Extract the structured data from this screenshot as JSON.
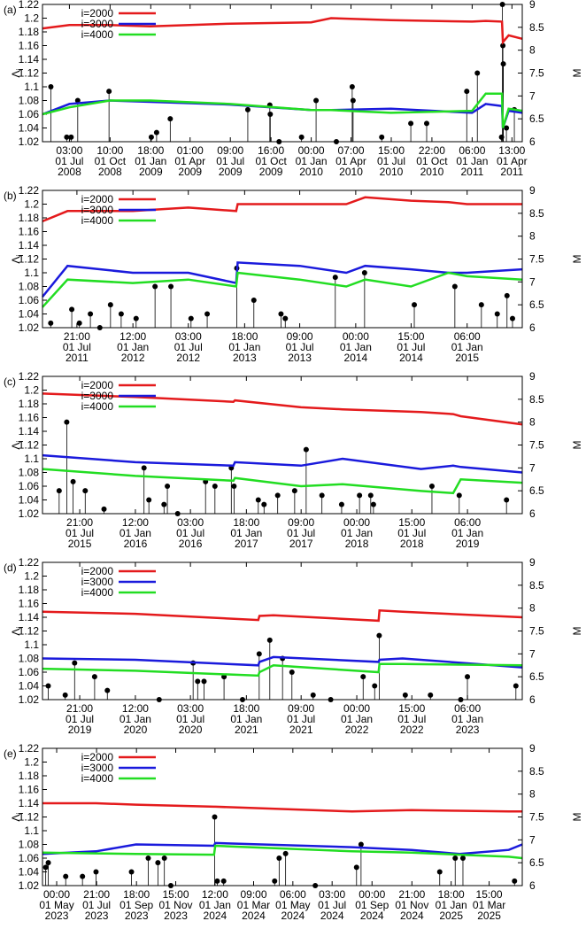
{
  "chart_data": [
    {
      "type": "line",
      "panel": "(a)",
      "ylabel": "Λi",
      "y2label": "M",
      "legend": "top left",
      "xlim": [
        "2008-05-01",
        "2011-04-25"
      ],
      "xticks": [
        {
          "value": "2008-07-01T03:00",
          "label": "03:00\n01 Jul\n2008"
        },
        {
          "value": "2008-10-01T10:00",
          "label": "10:00\n01 Oct\n2008"
        },
        {
          "value": "2009-01-01T18:00",
          "label": "18:00\n01 Jan\n2009"
        },
        {
          "value": "2009-04-01T01:00",
          "label": "01:00\n01 Apr\n2009"
        },
        {
          "value": "2009-07-01T09:00",
          "label": "09:00\n01 Jul\n2009"
        },
        {
          "value": "2009-10-01T16:00",
          "label": "16:00\n01 Oct\n2009"
        },
        {
          "value": "2010-01-01T00:00",
          "label": "00:00\n01 Jan\n2010"
        },
        {
          "value": "2010-04-01T07:00",
          "label": "07:00\n01 Apr\n2010"
        },
        {
          "value": "2010-07-01T15:00",
          "label": "15:00\n01 Jul\n2010"
        },
        {
          "value": "2010-10-01T22:00",
          "label": "22:00\n01 Oct\n2010"
        },
        {
          "value": "2011-01-01T06:00",
          "label": "06:00\n01 Jan\n2011"
        },
        {
          "value": "2011-04-01T13:00",
          "label": "13:00\n01 Apr\n2011"
        }
      ],
      "ylim": [
        1.02,
        1.22
      ],
      "yticks": [
        1.02,
        1.04,
        1.06,
        1.08,
        1.1,
        1.12,
        1.14,
        1.16,
        1.18,
        1.2,
        1.22
      ],
      "y2lim": [
        6,
        9
      ],
      "y2ticks": [
        6,
        6.5,
        7,
        7.5,
        8,
        8.5,
        9
      ],
      "x": [
        "2008-05-01",
        "2008-07-01",
        "2008-10-01",
        "2009-01-01",
        "2009-07-01",
        "2010-01-01",
        "2010-02-15",
        "2010-07-01",
        "2011-01-01",
        "2011-02-01",
        "2011-03-10",
        "2011-03-12",
        "2011-03-25",
        "2011-04-25"
      ],
      "series": [
        {
          "name": "i=2000",
          "color": "#e41a1c",
          "values": [
            1.185,
            1.19,
            1.19,
            1.188,
            1.192,
            1.194,
            1.2,
            1.197,
            1.195,
            1.196,
            1.195,
            1.165,
            1.175,
            1.17
          ]
        },
        {
          "name": "i=3000",
          "color": "#1a1adc",
          "values": [
            1.06,
            1.075,
            1.08,
            1.078,
            1.074,
            1.066,
            1.066,
            1.068,
            1.062,
            1.075,
            1.072,
            1.04,
            1.065,
            1.062
          ]
        },
        {
          "name": "i=4000",
          "color": "#22dd22",
          "values": [
            1.06,
            1.07,
            1.08,
            1.08,
            1.075,
            1.066,
            1.066,
            1.062,
            1.065,
            1.09,
            1.09,
            1.04,
            1.068,
            1.065
          ]
        }
      ],
      "stems": {
        "axis": "y2",
        "color": "#000000",
        "x": [
          "2008-05-20",
          "2008-06-25",
          "2008-07-05",
          "2008-07-20",
          "2008-09-29",
          "2009-01-03",
          "2009-01-15",
          "2009-02-15",
          "2009-08-10",
          "2009-09-29",
          "2009-09-30",
          "2009-10-20",
          "2009-12-10",
          "2010-01-12",
          "2010-02-27",
          "2010-04-04",
          "2010-04-06",
          "2010-06-10",
          "2010-08-15",
          "2010-09-20",
          "2010-12-20",
          "2011-01-13",
          "2011-03-09",
          "2011-03-11",
          "2011-03-12",
          "2011-03-13",
          "2011-03-20",
          "2011-04-07"
        ],
        "values": [
          7.2,
          6.1,
          6.1,
          6.9,
          7.1,
          6.1,
          6.2,
          6.5,
          6.7,
          6.8,
          6.6,
          6.0,
          6.1,
          6.9,
          6.0,
          7.2,
          6.9,
          6.1,
          6.4,
          6.4,
          7.1,
          7.5,
          6.1,
          9.0,
          8.1,
          7.7,
          6.3,
          6.7
        ]
      }
    },
    {
      "type": "line",
      "panel": "(b)",
      "ylabel": "Λi",
      "y2label": "M",
      "legend": "top left",
      "xlim": [
        "2011-03-11",
        "2015-07-01"
      ],
      "xticks": [
        {
          "value": "2011-07-01T21:00",
          "label": "21:00\n01 Jul\n2011"
        },
        {
          "value": "2012-01-01T12:00",
          "label": "12:00\n01 Jan\n2012"
        },
        {
          "value": "2012-07-01T03:00",
          "label": "03:00\n01 Jul\n2012"
        },
        {
          "value": "2013-01-01T18:00",
          "label": "18:00\n01 Jan\n2013"
        },
        {
          "value": "2013-07-01T09:00",
          "label": "09:00\n01 Jul\n2013"
        },
        {
          "value": "2014-01-01T00:00",
          "label": "00:00\n01 Jan\n2014"
        },
        {
          "value": "2014-07-01T15:00",
          "label": "15:00\n01 Jul\n2014"
        },
        {
          "value": "2015-01-01T06:00",
          "label": "06:00\n01 Jan\n2015"
        }
      ],
      "ylim": [
        1.02,
        1.22
      ],
      "yticks": [
        1.02,
        1.04,
        1.06,
        1.08,
        1.1,
        1.12,
        1.14,
        1.16,
        1.18,
        1.2,
        1.22
      ],
      "y2lim": [
        6,
        9
      ],
      "y2ticks": [
        6,
        6.5,
        7,
        7.5,
        8,
        8.5,
        9
      ],
      "x": [
        "2011-03-11",
        "2011-06-01",
        "2012-01-01",
        "2012-07-01",
        "2012-12-05",
        "2012-12-10",
        "2013-07-01",
        "2013-12-01",
        "2014-02-01",
        "2014-07-01",
        "2014-11-01",
        "2015-01-01",
        "2015-07-01"
      ],
      "series": [
        {
          "name": "i=2000",
          "color": "#e41a1c",
          "values": [
            1.175,
            1.19,
            1.19,
            1.195,
            1.19,
            1.2,
            1.2,
            1.2,
            1.21,
            1.205,
            1.203,
            1.2,
            1.2
          ]
        },
        {
          "name": "i=3000",
          "color": "#1a1adc",
          "values": [
            1.065,
            1.11,
            1.1,
            1.1,
            1.085,
            1.115,
            1.11,
            1.1,
            1.11,
            1.105,
            1.1,
            1.1,
            1.105
          ]
        },
        {
          "name": "i=4000",
          "color": "#22dd22",
          "values": [
            1.05,
            1.09,
            1.085,
            1.09,
            1.08,
            1.1,
            1.09,
            1.08,
            1.09,
            1.08,
            1.1,
            1.095,
            1.09
          ]
        }
      ],
      "stems": {
        "axis": "y2",
        "color": "#000000",
        "x": [
          "2011-04-07",
          "2011-06-15",
          "2011-07-10",
          "2011-08-15",
          "2011-09-15",
          "2011-10-20",
          "2011-11-24",
          "2012-01-12",
          "2012-03-14",
          "2012-05-05",
          "2012-07-10",
          "2012-09-01",
          "2012-12-07",
          "2013-02-01",
          "2013-05-01",
          "2013-05-15",
          "2013-10-26",
          "2014-01-30",
          "2014-07-12",
          "2014-11-22",
          "2015-02-17",
          "2015-04-10",
          "2015-05-12",
          "2015-05-30"
        ],
        "values": [
          6.1,
          6.4,
          6.1,
          6.3,
          6.0,
          6.5,
          6.3,
          6.2,
          6.9,
          6.9,
          6.2,
          6.3,
          7.3,
          6.6,
          6.3,
          6.2,
          7.1,
          7.2,
          6.5,
          6.9,
          6.5,
          6.3,
          6.7,
          6.2
        ]
      }
    },
    {
      "type": "line",
      "panel": "(c)",
      "ylabel": "Λi",
      "y2label": "M",
      "legend": "top left",
      "xlim": [
        "2015-03-01",
        "2019-07-01"
      ],
      "xticks": [
        {
          "value": "2015-07-01T21:00",
          "label": "21:00\n01 Jul\n2015"
        },
        {
          "value": "2016-01-01T12:00",
          "label": "12:00\n01 Jan\n2016"
        },
        {
          "value": "2016-07-01T03:00",
          "label": "03:00\n01 Jul\n2016"
        },
        {
          "value": "2017-01-01T18:00",
          "label": "18:00\n01 Jan\n2017"
        },
        {
          "value": "2017-07-01T09:00",
          "label": "09:00\n01 Jul\n2017"
        },
        {
          "value": "2018-01-01T00:00",
          "label": "00:00\n01 Jan\n2018"
        },
        {
          "value": "2018-07-01T15:00",
          "label": "15:00\n01 Jul\n2018"
        },
        {
          "value": "2019-01-01T06:00",
          "label": "06:00\n01 Jan\n2019"
        }
      ],
      "ylim": [
        1.02,
        1.22
      ],
      "yticks": [
        1.02,
        1.04,
        1.06,
        1.08,
        1.1,
        1.12,
        1.14,
        1.16,
        1.18,
        1.2,
        1.22
      ],
      "y2lim": [
        6,
        9
      ],
      "y2ticks": [
        6,
        6.5,
        7,
        7.5,
        8,
        8.5,
        9
      ],
      "x": [
        "2015-03-01",
        "2016-01-01",
        "2016-11-20",
        "2016-11-25",
        "2017-07-01",
        "2017-11-15",
        "2018-08-01",
        "2018-11-15",
        "2018-12-10",
        "2019-07-01"
      ],
      "series": [
        {
          "name": "i=2000",
          "color": "#e41a1c",
          "values": [
            1.195,
            1.19,
            1.183,
            1.185,
            1.175,
            1.172,
            1.168,
            1.165,
            1.162,
            1.15
          ]
        },
        {
          "name": "i=3000",
          "color": "#1a1adc",
          "values": [
            1.105,
            1.095,
            1.09,
            1.095,
            1.09,
            1.1,
            1.085,
            1.09,
            1.088,
            1.08
          ]
        },
        {
          "name": "i=4000",
          "color": "#22dd22",
          "values": [
            1.085,
            1.075,
            1.068,
            1.072,
            1.06,
            1.063,
            1.053,
            1.05,
            1.07,
            1.065
          ]
        }
      ],
      "stems": {
        "axis": "y2",
        "color": "#000000",
        "x": [
          "2015-04-25",
          "2015-05-20",
          "2015-06-10",
          "2015-07-20",
          "2015-09-20",
          "2016-01-30",
          "2016-02-15",
          "2016-04-05",
          "2016-04-16",
          "2016-05-20",
          "2016-08-20",
          "2016-09-20",
          "2016-11-13",
          "2016-11-22",
          "2017-02-10",
          "2017-03-01",
          "2017-04-15",
          "2017-06-10",
          "2017-07-18",
          "2017-09-08",
          "2017-11-12",
          "2018-01-10",
          "2018-02-16",
          "2018-02-25",
          "2018-09-06",
          "2018-12-05",
          "2019-05-10"
        ],
        "values": [
          6.5,
          8.0,
          6.7,
          6.5,
          6.1,
          7.0,
          6.3,
          6.2,
          6.6,
          6.0,
          6.7,
          6.6,
          7.0,
          6.6,
          6.3,
          6.2,
          6.4,
          6.5,
          7.4,
          6.4,
          6.2,
          6.4,
          6.4,
          6.2,
          6.6,
          6.4,
          6.3
        ]
      }
    },
    {
      "type": "line",
      "panel": "(d)",
      "ylabel": "Λi",
      "y2label": "M",
      "legend": "top left",
      "xlim": [
        "2019-03-01",
        "2023-07-01"
      ],
      "xticks": [
        {
          "value": "2019-07-01T21:00",
          "label": "21:00\n01 Jul\n2019"
        },
        {
          "value": "2020-01-01T12:00",
          "label": "12:00\n01 Jan\n2020"
        },
        {
          "value": "2020-07-01T03:00",
          "label": "03:00\n01 Jul\n2020"
        },
        {
          "value": "2021-01-01T18:00",
          "label": "18:00\n01 Jan\n2021"
        },
        {
          "value": "2021-07-01T09:00",
          "label": "09:00\n01 Jul\n2021"
        },
        {
          "value": "2022-01-01T00:00",
          "label": "00:00\n01 Jan\n2022"
        },
        {
          "value": "2022-07-01T15:00",
          "label": "15:00\n01 Jul\n2022"
        },
        {
          "value": "2023-01-01T06:00",
          "label": "06:00\n01 Jan\n2023"
        }
      ],
      "ylim": [
        1.02,
        1.22
      ],
      "yticks": [
        1.02,
        1.04,
        1.06,
        1.08,
        1.1,
        1.12,
        1.14,
        1.16,
        1.18,
        1.2,
        1.22
      ],
      "y2lim": [
        6,
        9
      ],
      "y2ticks": [
        6,
        6.5,
        7,
        7.5,
        8,
        8.5,
        9
      ],
      "x": [
        "2019-03-01",
        "2020-01-01",
        "2021-02-10",
        "2021-02-14",
        "2021-04-01",
        "2022-03-14",
        "2022-03-17",
        "2022-06-01",
        "2023-07-01"
      ],
      "series": [
        {
          "name": "i=2000",
          "color": "#e41a1c",
          "values": [
            1.148,
            1.145,
            1.136,
            1.142,
            1.143,
            1.135,
            1.15,
            1.148,
            1.14
          ]
        },
        {
          "name": "i=3000",
          "color": "#1a1adc",
          "values": [
            1.08,
            1.078,
            1.07,
            1.075,
            1.082,
            1.075,
            1.078,
            1.08,
            1.067
          ]
        },
        {
          "name": "i=4000",
          "color": "#22dd22",
          "values": [
            1.065,
            1.062,
            1.055,
            1.06,
            1.07,
            1.06,
            1.072,
            1.072,
            1.07
          ]
        }
      ],
      "stems": {
        "axis": "y2",
        "color": "#000000",
        "x": [
          "2019-03-20",
          "2019-05-15",
          "2019-06-15",
          "2019-08-20",
          "2019-10-01",
          "2020-03-20",
          "2020-07-10",
          "2020-07-25",
          "2020-08-15",
          "2020-10-20",
          "2020-12-20",
          "2021-02-13",
          "2021-03-20",
          "2021-05-01",
          "2021-06-01",
          "2021-08-10",
          "2021-10-07",
          "2022-01-22",
          "2022-03-01",
          "2022-03-16",
          "2022-06-10",
          "2022-09-01",
          "2022-12-10",
          "2023-01-01",
          "2023-06-10"
        ],
        "values": [
          6.3,
          6.1,
          6.8,
          6.5,
          6.2,
          6.0,
          6.8,
          6.4,
          6.4,
          6.5,
          6.0,
          7.0,
          7.3,
          6.9,
          6.6,
          6.1,
          6.0,
          6.5,
          6.3,
          7.4,
          6.1,
          6.1,
          6.0,
          6.5,
          6.3
        ]
      }
    },
    {
      "type": "line",
      "panel": "(e)",
      "ylabel": "Λi",
      "y2label": "M",
      "legend": "top left",
      "xlim": [
        "2023-04-09",
        "2025-04-22"
      ],
      "xticks": [
        {
          "value": "2023-05-01T00:00",
          "label": "00:00\n01 May\n2023"
        },
        {
          "value": "2023-07-01T21:00",
          "label": "21:00\n01 Jul\n2023"
        },
        {
          "value": "2023-09-01T18:00",
          "label": "18:00\n01 Sep\n2023"
        },
        {
          "value": "2023-11-01T15:00",
          "label": "15:00\n01 Nov\n2023"
        },
        {
          "value": "2024-01-01T12:00",
          "label": "12:00\n01 Jan\n2024"
        },
        {
          "value": "2024-03-01T09:00",
          "label": "09:00\n01 Mar\n2024"
        },
        {
          "value": "2024-05-01T06:00",
          "label": "06:00\n01 May\n2024"
        },
        {
          "value": "2024-07-01T03:00",
          "label": "03:00\n01 Jul\n2024"
        },
        {
          "value": "2024-09-01T00:00",
          "label": "00:00\n01 Sep\n2024"
        },
        {
          "value": "2024-11-01T21:00",
          "label": "21:00\n01 Nov\n2024"
        },
        {
          "value": "2025-01-01T18:00",
          "label": "18:00\n01 Jan\n2025"
        },
        {
          "value": "2025-03-01T15:00",
          "label": "15:00\n01 Mar\n2025"
        }
      ],
      "ylim": [
        1.02,
        1.22
      ],
      "yticks": [
        1.02,
        1.04,
        1.06,
        1.08,
        1.1,
        1.12,
        1.14,
        1.16,
        1.18,
        1.2,
        1.22
      ],
      "y2lim": [
        6,
        9
      ],
      "y2ticks": [
        6,
        6.5,
        7,
        7.5,
        8,
        8.5,
        9
      ],
      "x": [
        "2023-04-09",
        "2023-07-01",
        "2023-09-01",
        "2023-12-31",
        "2024-01-02",
        "2024-08-01",
        "2024-11-01",
        "2025-01-15",
        "2025-04-01",
        "2025-04-22"
      ],
      "series": [
        {
          "name": "i=2000",
          "color": "#e41a1c",
          "values": [
            1.14,
            1.14,
            1.138,
            1.135,
            1.135,
            1.128,
            1.13,
            1.129,
            1.128,
            1.128
          ]
        },
        {
          "name": "i=3000",
          "color": "#1a1adc",
          "values": [
            1.066,
            1.07,
            1.08,
            1.078,
            1.082,
            1.076,
            1.072,
            1.066,
            1.072,
            1.08
          ]
        },
        {
          "name": "i=4000",
          "color": "#22dd22",
          "values": [
            1.068,
            1.067,
            1.066,
            1.065,
            1.078,
            1.07,
            1.068,
            1.065,
            1.062,
            1.06
          ]
        }
      ],
      "stems": {
        "axis": "y2",
        "color": "#000000",
        "x": [
          "2023-04-14",
          "2023-04-18",
          "2023-05-15",
          "2023-06-10",
          "2023-07-01",
          "2023-08-25",
          "2023-09-20",
          "2023-10-05",
          "2023-10-15",
          "2023-10-25",
          "2024-01-01",
          "2024-01-05",
          "2024-01-15",
          "2024-04-03",
          "2024-04-10",
          "2024-04-20",
          "2024-06-05",
          "2024-08-08",
          "2024-08-15",
          "2024-12-15",
          "2025-01-08",
          "2025-01-20",
          "2025-04-10"
        ],
        "values": [
          6.4,
          6.5,
          6.2,
          6.2,
          6.3,
          6.3,
          6.6,
          6.5,
          6.6,
          6.0,
          7.5,
          6.1,
          6.1,
          6.1,
          6.6,
          6.7,
          6.0,
          6.4,
          6.9,
          6.3,
          6.6,
          6.6,
          6.1
        ]
      }
    }
  ]
}
